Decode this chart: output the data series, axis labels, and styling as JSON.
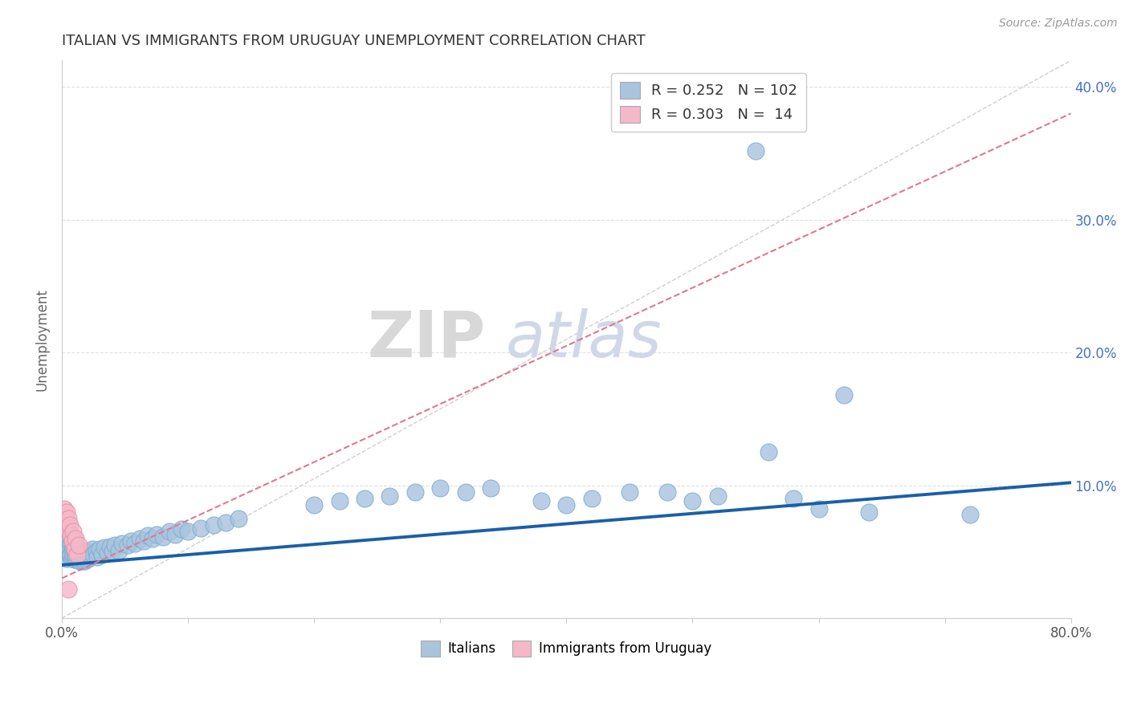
{
  "title": "ITALIAN VS IMMIGRANTS FROM URUGUAY UNEMPLOYMENT CORRELATION CHART",
  "source_text": "Source: ZipAtlas.com",
  "ylabel": "Unemployment",
  "watermark_zip": "ZIP",
  "watermark_atlas": "atlas",
  "xlim": [
    0,
    0.8
  ],
  "ylim": [
    0,
    0.42
  ],
  "xtick_positions": [
    0.0,
    0.1,
    0.2,
    0.3,
    0.4,
    0.5,
    0.6,
    0.7,
    0.8
  ],
  "xticklabels": [
    "0.0%",
    "",
    "",
    "",
    "",
    "",
    "",
    "",
    "80.0%"
  ],
  "ytick_positions": [
    0.1,
    0.2,
    0.3,
    0.4
  ],
  "ytick_labels": [
    "10.0%",
    "20.0%",
    "30.0%",
    "40.0%"
  ],
  "italian_color": "#aac4de",
  "italian_edge_color": "#7aadd0",
  "uruguay_color": "#f5b8c8",
  "uruguay_edge_color": "#e890a8",
  "trend_blue": "#1a5fa8",
  "trend_pink": "#e07890",
  "ref_line_color": "#d0d0d0",
  "grid_color": "#e0e0e0",
  "title_color": "#333333",
  "axis_label_color": "#666666",
  "right_tick_color": "#4472c4",
  "italians_x": [
    0.001,
    0.002,
    0.002,
    0.003,
    0.003,
    0.003,
    0.004,
    0.004,
    0.004,
    0.005,
    0.005,
    0.005,
    0.006,
    0.006,
    0.006,
    0.007,
    0.007,
    0.007,
    0.008,
    0.008,
    0.008,
    0.009,
    0.009,
    0.009,
    0.01,
    0.01,
    0.01,
    0.011,
    0.011,
    0.012,
    0.012,
    0.013,
    0.013,
    0.014,
    0.014,
    0.015,
    0.015,
    0.016,
    0.016,
    0.017,
    0.017,
    0.018,
    0.018,
    0.019,
    0.02,
    0.021,
    0.022,
    0.023,
    0.024,
    0.025,
    0.027,
    0.028,
    0.03,
    0.032,
    0.034,
    0.036,
    0.038,
    0.04,
    0.042,
    0.045,
    0.048,
    0.052,
    0.055,
    0.058,
    0.062,
    0.065,
    0.068,
    0.072,
    0.075,
    0.08,
    0.085,
    0.09,
    0.095,
    0.1,
    0.11,
    0.12,
    0.13,
    0.14,
    0.2,
    0.22,
    0.24,
    0.26,
    0.28,
    0.3,
    0.32,
    0.34,
    0.38,
    0.4,
    0.42,
    0.45,
    0.48,
    0.5,
    0.52,
    0.55,
    0.56,
    0.58,
    0.6,
    0.62,
    0.64,
    0.72
  ],
  "italians_y": [
    0.055,
    0.048,
    0.072,
    0.052,
    0.06,
    0.068,
    0.045,
    0.055,
    0.062,
    0.05,
    0.058,
    0.065,
    0.047,
    0.053,
    0.06,
    0.048,
    0.056,
    0.063,
    0.045,
    0.052,
    0.059,
    0.047,
    0.054,
    0.061,
    0.044,
    0.051,
    0.058,
    0.046,
    0.053,
    0.044,
    0.051,
    0.045,
    0.052,
    0.043,
    0.05,
    0.044,
    0.051,
    0.043,
    0.05,
    0.044,
    0.051,
    0.043,
    0.05,
    0.044,
    0.048,
    0.045,
    0.05,
    0.047,
    0.052,
    0.048,
    0.05,
    0.046,
    0.052,
    0.048,
    0.053,
    0.049,
    0.054,
    0.05,
    0.055,
    0.051,
    0.056,
    0.055,
    0.058,
    0.056,
    0.06,
    0.058,
    0.062,
    0.06,
    0.063,
    0.061,
    0.065,
    0.063,
    0.067,
    0.065,
    0.068,
    0.07,
    0.072,
    0.075,
    0.085,
    0.088,
    0.09,
    0.092,
    0.095,
    0.098,
    0.095,
    0.098,
    0.088,
    0.085,
    0.09,
    0.095,
    0.095,
    0.088,
    0.092,
    0.352,
    0.125,
    0.09,
    0.082,
    0.168,
    0.08,
    0.078
  ],
  "uruguayan_x": [
    0.002,
    0.003,
    0.004,
    0.004,
    0.005,
    0.006,
    0.007,
    0.008,
    0.009,
    0.01,
    0.011,
    0.012,
    0.013,
    0.005
  ],
  "uruguayan_y": [
    0.082,
    0.072,
    0.068,
    0.08,
    0.075,
    0.07,
    0.062,
    0.058,
    0.065,
    0.052,
    0.06,
    0.048,
    0.055,
    0.022
  ],
  "trend_it_x0": 0.0,
  "trend_it_y0": 0.04,
  "trend_it_x1": 0.8,
  "trend_it_y1": 0.102,
  "trend_uru_x0": 0.0,
  "trend_uru_y0": 0.03,
  "trend_uru_x1": 0.8,
  "trend_uru_y1": 0.38
}
